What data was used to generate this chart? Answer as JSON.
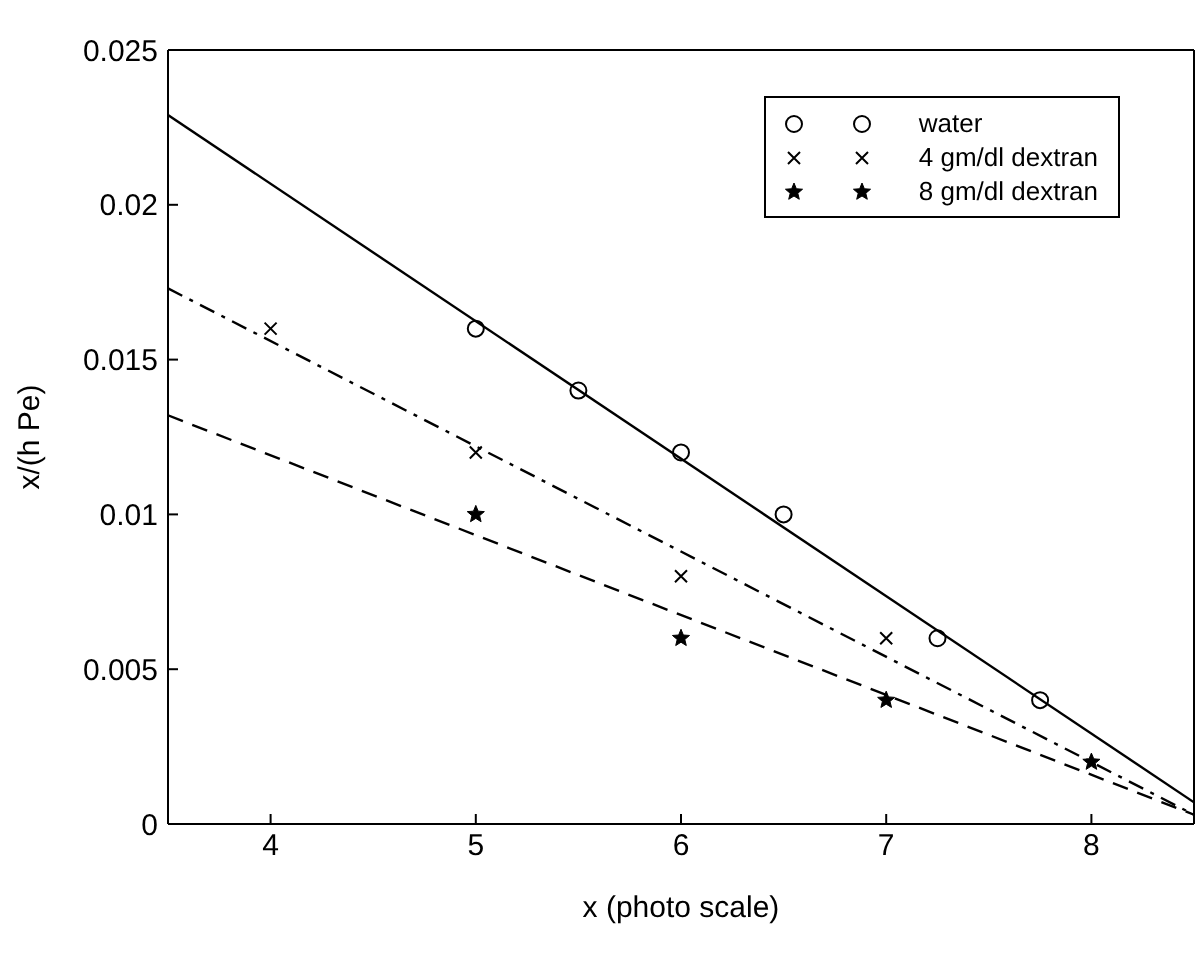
{
  "chart_data": {
    "type": "scatter",
    "xlabel": "x (photo scale)",
    "ylabel": "x/(h Pe)",
    "xlim": [
      3.5,
      8.5
    ],
    "xticks": [
      4,
      5,
      6,
      7,
      8
    ],
    "ylim": [
      0,
      0.025
    ],
    "yticks": [
      0,
      0.005,
      0.01,
      0.015,
      0.02,
      0.025
    ],
    "legend": "top right",
    "series": [
      {
        "name": "water",
        "marker": "circle",
        "color": "#000000",
        "x": [
          5,
          5.5,
          6,
          6.5,
          7.25,
          7.75
        ],
        "values": [
          0.016,
          0.014,
          0.012,
          0.01,
          0.006,
          0.004
        ]
      },
      {
        "name": "4 gm/dl dextran",
        "marker": "cross",
        "color": "#000000",
        "x": [
          4,
          5,
          6,
          7
        ],
        "values": [
          0.016,
          0.012,
          0.008,
          0.006
        ]
      },
      {
        "name": "8 gm/dl dextran",
        "marker": "star",
        "color": "#000000",
        "x": [
          5,
          6,
          7,
          8
        ],
        "values": [
          0.01,
          0.006,
          0.004,
          0.002
        ]
      },
      {
        "type": "line",
        "line_style": "solid",
        "marker": "none",
        "color": "#000000",
        "x": [
          3.5,
          8.5
        ],
        "values": [
          0.0229,
          0.0007
        ]
      },
      {
        "type": "line",
        "line_style": "dashdot",
        "marker": "none",
        "color": "#000000",
        "x": [
          3.5,
          8.5
        ],
        "values": [
          0.0173,
          0.0003
        ]
      },
      {
        "type": "line",
        "line_style": "dashed",
        "marker": "none",
        "color": "#000000",
        "x": [
          3.5,
          8.5
        ],
        "values": [
          0.0132,
          0.0003
        ]
      }
    ]
  }
}
